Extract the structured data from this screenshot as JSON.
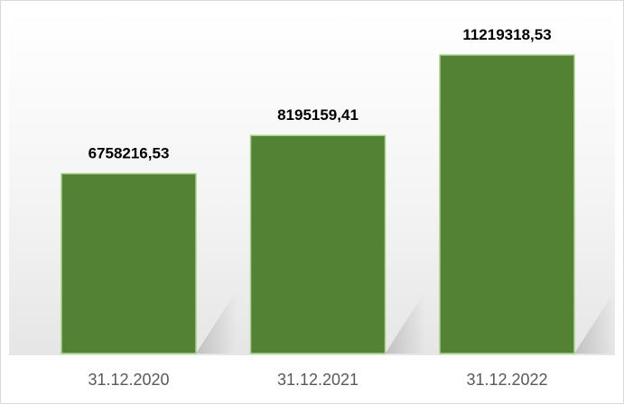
{
  "chart_data": {
    "type": "bar",
    "categories": [
      "31.12.2020",
      "31.12.2021",
      "31.12.2022"
    ],
    "values": [
      6758216.53,
      8195159.41,
      11219318.53
    ],
    "value_labels": [
      "6758216,53",
      "8195159,41",
      "11219318,53"
    ],
    "color": "#548235"
  }
}
